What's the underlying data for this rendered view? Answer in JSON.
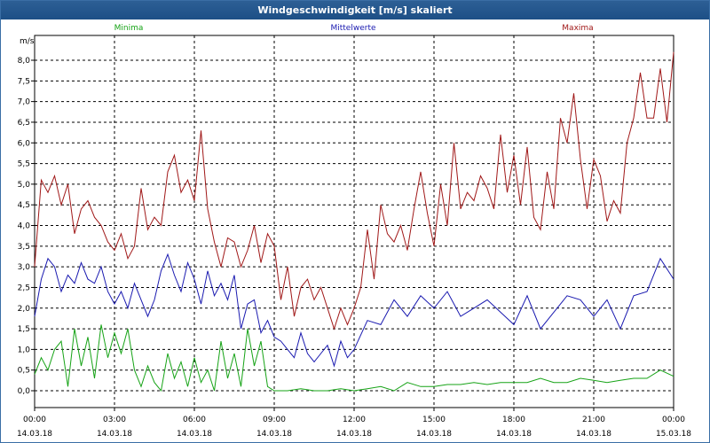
{
  "window": {
    "title": "Windgeschwindigkeit [m/s] skaliert"
  },
  "colors": {
    "minima": "#16a316",
    "mittelwerte": "#1a1ab0",
    "maxima": "#a01818",
    "grid": "#000000",
    "title_bg": "#1d4f86"
  },
  "chart_data": {
    "type": "line",
    "title": "Windgeschwindigkeit [m/s] skaliert",
    "ylabel": "m/s",
    "xlabel": "",
    "ylim": [
      -0.4,
      8.4
    ],
    "yticks": [
      "0,0",
      "0,5",
      "1,0",
      "1,5",
      "2,0",
      "2,5",
      "3,0",
      "3,5",
      "4,0",
      "4,5",
      "5,0",
      "5,5",
      "6,0",
      "6,5",
      "7,0",
      "7,5",
      "8,0"
    ],
    "xticks": [
      {
        "time": "00:00",
        "date": "14.03.18"
      },
      {
        "time": "03:00",
        "date": "14.03.18"
      },
      {
        "time": "06:00",
        "date": "14.03.18"
      },
      {
        "time": "09:00",
        "date": "14.03.18"
      },
      {
        "time": "12:00",
        "date": "14.03.18"
      },
      {
        "time": "15:00",
        "date": "14.03.18"
      },
      {
        "time": "18:00",
        "date": "14.03.18"
      },
      {
        "time": "21:00",
        "date": "14.03.18"
      },
      {
        "time": "00:00",
        "date": "15.03.18"
      }
    ],
    "grid": true,
    "legend_position": "top",
    "series": [
      {
        "name": "Minima",
        "x_hours": [
          0,
          0.25,
          0.5,
          0.75,
          1,
          1.25,
          1.5,
          1.75,
          2,
          2.25,
          2.5,
          2.75,
          3,
          3.25,
          3.5,
          3.75,
          4,
          4.25,
          4.5,
          4.75,
          5,
          5.25,
          5.5,
          5.75,
          6,
          6.25,
          6.5,
          6.75,
          7,
          7.25,
          7.5,
          7.75,
          8,
          8.25,
          8.5,
          8.75,
          9,
          9.5,
          10,
          10.5,
          11,
          11.5,
          12,
          12.5,
          13,
          13.5,
          14,
          14.5,
          15,
          15.5,
          16,
          16.5,
          17,
          17.5,
          18,
          18.5,
          19,
          19.5,
          20,
          20.5,
          21,
          21.5,
          22,
          22.5,
          23,
          23.5,
          24
        ],
        "values": [
          0.4,
          0.8,
          0.5,
          1.0,
          1.2,
          0.1,
          1.5,
          0.6,
          1.3,
          0.3,
          1.6,
          0.8,
          1.4,
          0.9,
          1.5,
          0.5,
          0.1,
          0.6,
          0.2,
          0.0,
          0.9,
          0.3,
          0.7,
          0.1,
          0.8,
          0.2,
          0.5,
          0.0,
          1.2,
          0.3,
          0.9,
          0.1,
          1.5,
          0.6,
          1.2,
          0.1,
          0.0,
          0.0,
          0.05,
          0.0,
          0.0,
          0.05,
          0.0,
          0.05,
          0.1,
          0.0,
          0.2,
          0.1,
          0.1,
          0.15,
          0.15,
          0.2,
          0.15,
          0.2,
          0.2,
          0.2,
          0.3,
          0.2,
          0.2,
          0.3,
          0.25,
          0.2,
          0.25,
          0.3,
          0.3,
          0.5,
          0.35
        ]
      },
      {
        "name": "Mittelwerte",
        "x_hours": [
          0,
          0.25,
          0.5,
          0.75,
          1,
          1.25,
          1.5,
          1.75,
          2,
          2.25,
          2.5,
          2.75,
          3,
          3.25,
          3.5,
          3.75,
          4,
          4.25,
          4.5,
          4.75,
          5,
          5.25,
          5.5,
          5.75,
          6,
          6.25,
          6.5,
          6.75,
          7,
          7.25,
          7.5,
          7.75,
          8,
          8.25,
          8.5,
          8.75,
          9,
          9.25,
          9.5,
          9.75,
          10,
          10.25,
          10.5,
          10.75,
          11,
          11.25,
          11.5,
          11.75,
          12,
          12.5,
          13,
          13.5,
          14,
          14.5,
          15,
          15.5,
          16,
          16.5,
          17,
          17.5,
          18,
          18.5,
          19,
          19.5,
          20,
          20.5,
          21,
          21.5,
          22,
          22.5,
          23,
          23.5,
          24
        ],
        "values": [
          1.8,
          2.7,
          3.2,
          3.0,
          2.4,
          2.8,
          2.6,
          3.1,
          2.7,
          2.6,
          3.0,
          2.4,
          2.1,
          2.4,
          2.0,
          2.6,
          2.2,
          1.8,
          2.2,
          2.9,
          3.3,
          2.8,
          2.4,
          3.1,
          2.7,
          2.1,
          2.9,
          2.3,
          2.6,
          2.2,
          2.8,
          1.5,
          2.1,
          2.2,
          1.4,
          1.7,
          1.3,
          1.2,
          1.0,
          0.8,
          1.4,
          0.9,
          0.7,
          0.9,
          1.1,
          0.6,
          1.2,
          0.8,
          1.0,
          1.7,
          1.6,
          2.2,
          1.8,
          2.3,
          2.0,
          2.4,
          1.8,
          2.0,
          2.2,
          1.9,
          1.6,
          2.3,
          1.5,
          1.9,
          2.3,
          2.2,
          1.8,
          2.2,
          1.5,
          2.3,
          2.4,
          3.2,
          2.7
        ]
      },
      {
        "name": "Maxima",
        "x_hours": [
          0,
          0.25,
          0.5,
          0.75,
          1,
          1.25,
          1.5,
          1.75,
          2,
          2.25,
          2.5,
          2.75,
          3,
          3.25,
          3.5,
          3.75,
          4,
          4.25,
          4.5,
          4.75,
          5,
          5.25,
          5.5,
          5.75,
          6,
          6.25,
          6.5,
          6.75,
          7,
          7.25,
          7.5,
          7.75,
          8,
          8.25,
          8.5,
          8.75,
          9,
          9.25,
          9.5,
          9.75,
          10,
          10.25,
          10.5,
          10.75,
          11,
          11.25,
          11.5,
          11.75,
          12,
          12.25,
          12.5,
          12.75,
          13,
          13.25,
          13.5,
          13.75,
          14,
          14.25,
          14.5,
          14.75,
          15,
          15.25,
          15.5,
          15.75,
          16,
          16.25,
          16.5,
          16.75,
          17,
          17.25,
          17.5,
          17.75,
          18,
          18.25,
          18.5,
          18.75,
          19,
          19.25,
          19.5,
          19.75,
          20,
          20.25,
          20.5,
          20.75,
          21,
          21.25,
          21.5,
          21.75,
          22,
          22.25,
          22.5,
          22.75,
          23,
          23.25,
          23.5,
          23.75,
          24
        ],
        "values": [
          3.0,
          5.1,
          4.8,
          5.2,
          4.5,
          5.0,
          3.8,
          4.4,
          4.6,
          4.2,
          4.0,
          3.6,
          3.4,
          3.8,
          3.2,
          3.5,
          4.9,
          3.9,
          4.2,
          4.0,
          5.3,
          5.7,
          4.8,
          5.1,
          4.6,
          6.3,
          4.4,
          3.6,
          3.0,
          3.7,
          3.6,
          3.0,
          3.4,
          4.0,
          3.1,
          3.8,
          3.5,
          2.2,
          3.0,
          1.8,
          2.5,
          2.7,
          2.2,
          2.5,
          2.0,
          1.5,
          2.0,
          1.6,
          2.0,
          2.5,
          3.9,
          2.7,
          4.5,
          3.8,
          3.6,
          4.0,
          3.4,
          4.4,
          5.3,
          4.3,
          3.5,
          5.0,
          4.0,
          6.0,
          4.4,
          4.8,
          4.6,
          5.2,
          4.9,
          4.4,
          6.2,
          4.8,
          5.7,
          4.5,
          5.9,
          4.2,
          3.9,
          5.3,
          4.4,
          6.6,
          6.0,
          7.2,
          5.6,
          4.4,
          5.6,
          5.2,
          4.1,
          4.6,
          4.3,
          6.0,
          6.6,
          7.7,
          6.6,
          6.6,
          7.8,
          6.5,
          8.2
        ]
      }
    ]
  }
}
